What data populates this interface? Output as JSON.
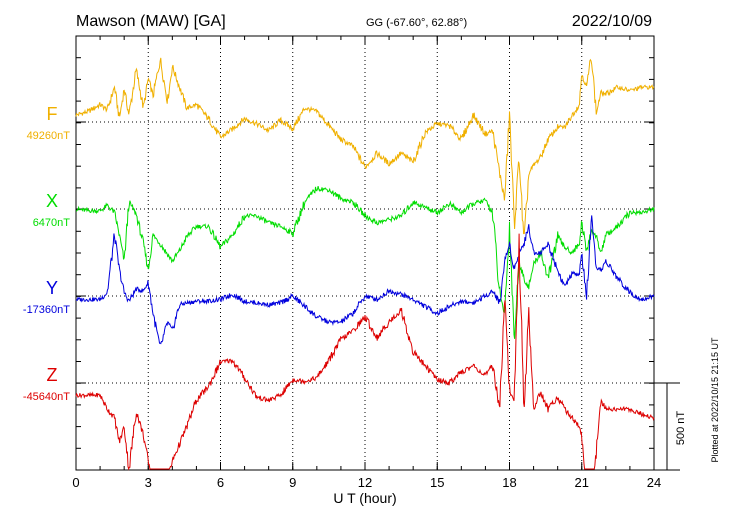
{
  "header": {
    "station": "Mawson (MAW)  [GA]",
    "coords": "GG (-67.60°,  62.88°)",
    "date": "2022/10/09"
  },
  "footer_note": "Plotted at 2022/10/15 21:15 UT",
  "chart_data": {
    "type": "line",
    "title": "Mawson (MAW)  [GA]",
    "xlabel": "U T (hour)",
    "x_ticks": [
      0,
      3,
      6,
      9,
      12,
      15,
      18,
      21,
      24
    ],
    "xlim": [
      0,
      24
    ],
    "grid": true,
    "scale_bar": {
      "label": "500 nT",
      "value_nT": 500
    },
    "x": [
      0,
      0.5,
      1,
      1.3,
      1.6,
      1.8,
      2,
      2.2,
      2.5,
      2.8,
      3,
      3.2,
      3.5,
      3.8,
      4,
      4.3,
      4.6,
      5,
      5.5,
      6,
      6.5,
      7,
      7.5,
      8,
      8.5,
      9,
      9.5,
      10,
      10.5,
      11,
      11.5,
      12,
      12.5,
      13,
      13.5,
      14,
      14.5,
      15,
      15.5,
      16,
      16.5,
      17,
      17.3,
      17.6,
      17.8,
      18,
      18.2,
      18.4,
      18.6,
      18.8,
      19,
      19.3,
      19.6,
      20,
      20.3,
      20.6,
      20.9,
      21,
      21.2,
      21.4,
      21.6,
      21.8,
      22,
      22.5,
      23,
      23.5,
      24
    ],
    "series": [
      {
        "name": "F",
        "baseline_label": "49260nT",
        "color": "#f0b000",
        "values": [
          40,
          60,
          100,
          70,
          200,
          20,
          190,
          40,
          300,
          80,
          250,
          150,
          360,
          120,
          320,
          200,
          80,
          100,
          20,
          -90,
          -40,
          20,
          -10,
          -50,
          10,
          -40,
          80,
          60,
          -20,
          -100,
          -140,
          -260,
          -180,
          -240,
          -180,
          -230,
          -60,
          -10,
          -20,
          -100,
          40,
          -70,
          -50,
          -300,
          -450,
          50,
          -600,
          -200,
          -700,
          -300,
          -250,
          -200,
          -100,
          -30,
          -30,
          40,
          100,
          280,
          200,
          390,
          50,
          170,
          160,
          200,
          180,
          200,
          200
        ]
      },
      {
        "name": "X",
        "baseline_label": "6470nT",
        "color": "#00dd00",
        "values": [
          0,
          -10,
          -10,
          20,
          -20,
          -150,
          -300,
          40,
          -30,
          -200,
          -350,
          -150,
          -200,
          -260,
          -300,
          -240,
          -160,
          -100,
          -100,
          -220,
          -150,
          -40,
          -40,
          -80,
          -100,
          -140,
          40,
          120,
          110,
          60,
          40,
          -40,
          -80,
          -60,
          -40,
          40,
          10,
          -20,
          30,
          -20,
          30,
          50,
          -20,
          -500,
          -600,
          -100,
          -750,
          -300,
          -400,
          -450,
          -320,
          -250,
          -400,
          -160,
          -220,
          -250,
          -200,
          -70,
          -250,
          -120,
          -160,
          -250,
          -150,
          -100,
          -20,
          -20,
          0
        ]
      },
      {
        "name": "Y",
        "baseline_label": "-17360nT",
        "color": "#0000dd",
        "values": [
          -20,
          -20,
          -20,
          20,
          350,
          150,
          20,
          -30,
          40,
          30,
          80,
          -100,
          -300,
          -150,
          -200,
          -50,
          -40,
          -30,
          -30,
          -20,
          10,
          -30,
          -40,
          -50,
          -40,
          0,
          -60,
          -120,
          -150,
          -150,
          -100,
          0,
          -20,
          30,
          10,
          -20,
          -60,
          -100,
          -60,
          -30,
          -40,
          0,
          30,
          -40,
          200,
          300,
          150,
          250,
          300,
          400,
          250,
          250,
          300,
          150,
          50,
          130,
          120,
          250,
          -20,
          450,
          150,
          150,
          200,
          100,
          20,
          -20,
          0
        ]
      },
      {
        "name": "Z",
        "baseline_label": "-45640nT",
        "color": "#dd0000",
        "values": [
          -70,
          -70,
          -70,
          -150,
          -200,
          -340,
          -250,
          -500,
          -160,
          -300,
          -450,
          -650,
          -750,
          -550,
          -450,
          -350,
          -250,
          -100,
          -20,
          120,
          130,
          30,
          -80,
          -100,
          -70,
          20,
          10,
          30,
          130,
          250,
          300,
          380,
          260,
          350,
          420,
          180,
          100,
          20,
          0,
          60,
          100,
          40,
          100,
          -150,
          550,
          -50,
          -100,
          800,
          -150,
          400,
          -150,
          -50,
          -150,
          -80,
          -150,
          -200,
          -250,
          -300,
          -680,
          -850,
          -400,
          -100,
          -150,
          -150,
          -150,
          -180,
          -200
        ]
      }
    ]
  }
}
